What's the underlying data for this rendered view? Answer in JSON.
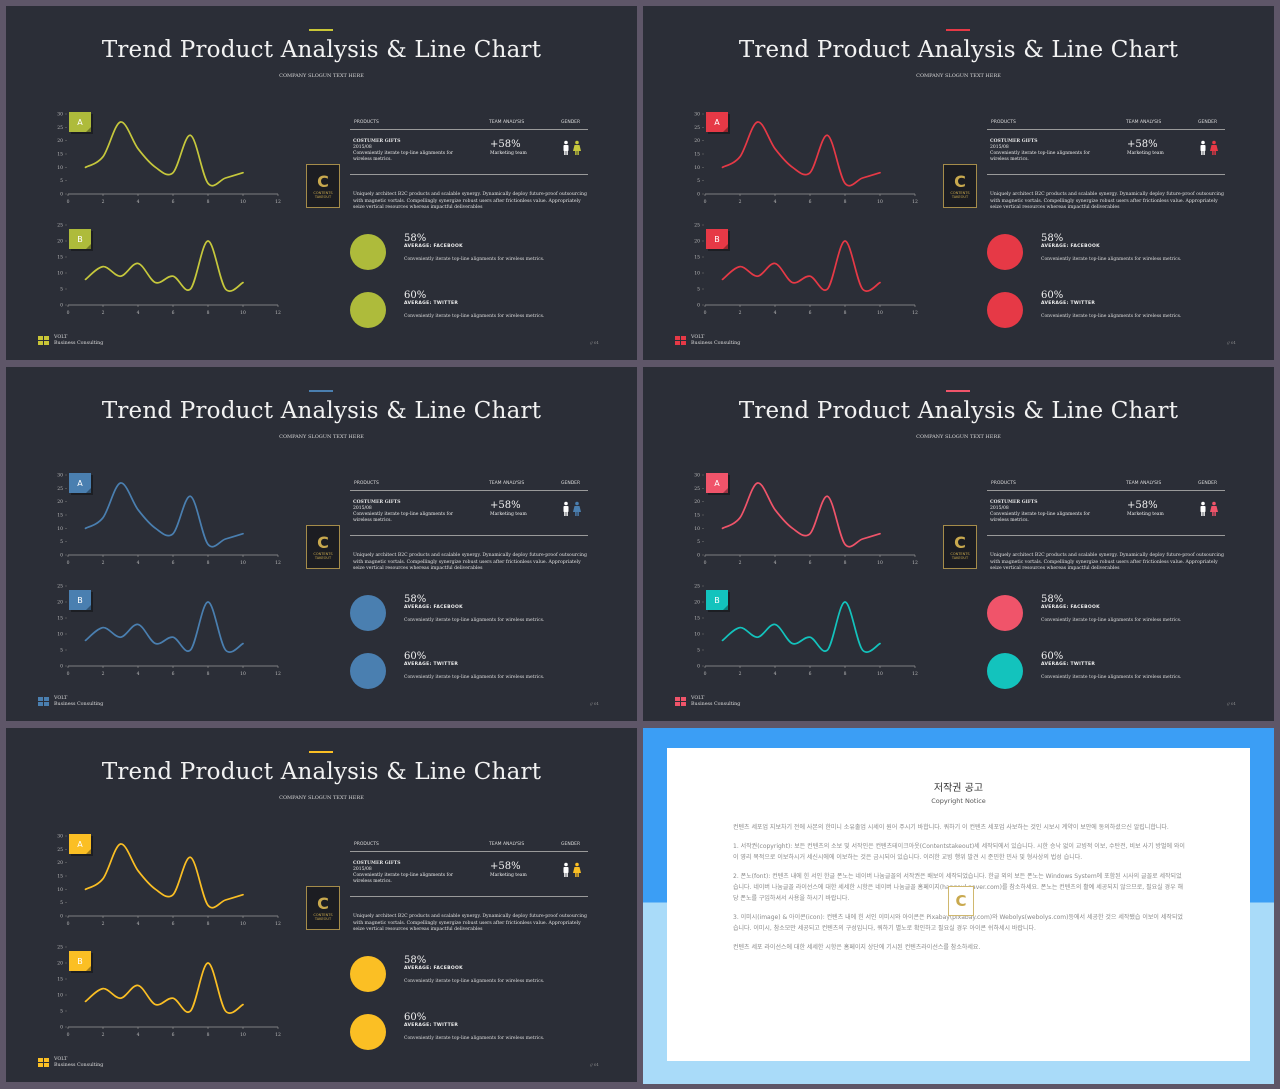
{
  "slides": [
    {
      "accent": "#c9c637",
      "title": "Trend Product Analysis & Line Chart",
      "slogan": "COMPANY SLOGUN TEXT HERE",
      "tag_a": "A",
      "tag_b": "B",
      "tag_a_color": "#aebb3b",
      "tag_b_color": "#aebb3b",
      "line_a": "#c6c83c",
      "line_b": "#c6c83c",
      "circle1": "#aebb3b",
      "circle2": "#aebb3b",
      "gender_left": "#ffffff",
      "gender_right": "#c6c83c"
    },
    {
      "accent": "#e63946",
      "title": "Trend Product Analysis & Line Chart",
      "slogan": "COMPANY SLOGUN TEXT HERE",
      "tag_a": "A",
      "tag_b": "B",
      "tag_a_color": "#e63946",
      "tag_b_color": "#e63946",
      "line_a": "#e63946",
      "line_b": "#e63946",
      "circle1": "#e63946",
      "circle2": "#e63946",
      "gender_left": "#ffffff",
      "gender_right": "#e63946"
    },
    {
      "accent": "#4a7fb0",
      "title": "Trend Product Analysis & Line Chart",
      "slogan": "COMPANY SLOGUN TEXT HERE",
      "tag_a": "A",
      "tag_b": "B",
      "tag_a_color": "#4a7fb0",
      "tag_b_color": "#4a7fb0",
      "line_a": "#4a7fb0",
      "line_b": "#4a7fb0",
      "circle1": "#4a7fb0",
      "circle2": "#4a7fb0",
      "gender_left": "#ffffff",
      "gender_right": "#4a7fb0"
    },
    {
      "accent": "#f0546a",
      "title": "Trend Product Analysis & Line Chart",
      "slogan": "COMPANY SLOGUN TEXT HERE",
      "tag_a": "A",
      "tag_b": "B",
      "tag_a_color": "#f0546a",
      "tag_b_color": "#13c3bd",
      "line_a": "#f0546a",
      "line_b": "#13c3bd",
      "circle1": "#f0546a",
      "circle2": "#13c3bd",
      "gender_left": "#ffffff",
      "gender_right": "#f0546a"
    },
    {
      "accent": "#fbbf24",
      "title": "Trend Product Analysis & Line Chart",
      "slogan": "COMPANY SLOGUN TEXT HERE",
      "tag_a": "A",
      "tag_b": "B",
      "tag_a_color": "#fbbf24",
      "tag_b_color": "#fbbf24",
      "line_a": "#fbbf24",
      "line_b": "#fbbf24",
      "circle1": "#fbbf24",
      "circle2": "#fbbf24",
      "gender_left": "#ffffff",
      "gender_right": "#fbbf24"
    }
  ],
  "common": {
    "th_products": "PRODUCTS",
    "th_team": "TEAM ANALYSIS",
    "th_gender": "GENDER",
    "prod_name": "COSTUMER GIFTS",
    "prod_date": "2015/08",
    "prod_desc": "Conveniently iterate top-line alignments for wireless metrics.",
    "metric_value": "+58%",
    "metric_label": "Marketing team",
    "logo_letter": "C",
    "logo_text": "CONTENTS TAKEOUT",
    "description": "Uniquely architect B2C products and scalable synergy. Dynamically deploy future-proof outsourcing with magnetic vortals. Compellingly synergize robust users after frictionless value. Appropriately seize vertical resources whereas impactful deliverables",
    "stat1_pct": "58%",
    "stat1_label": "AVERAGE: FACEBOOK",
    "stat1_text": "Conveniently iterate top-line alignments for wireless metrics.",
    "stat2_pct": "60%",
    "stat2_label": "AVERAGE: TWITTER",
    "stat2_text": "Conveniently iterate top-line alignments for wireless metrics.",
    "footer_name": "VOLT",
    "footer_sub": "Business  Consulting",
    "page": "// 01"
  },
  "chart_data": [
    {
      "type": "line",
      "title": "",
      "x_ticks": [
        "0",
        "2",
        "4",
        "6",
        "8",
        "10",
        "12"
      ],
      "y_ticks_a": [
        "0",
        "5",
        "10",
        "15",
        "20",
        "25",
        "30"
      ],
      "y_ticks_b": [
        "0",
        "5",
        "10",
        "15",
        "20",
        "25"
      ],
      "series": [
        {
          "x": [
            1,
            2,
            3,
            4,
            5,
            6,
            7,
            8,
            9,
            10
          ],
          "y": [
            10,
            14,
            27,
            17,
            10,
            8,
            22,
            4,
            6,
            8
          ]
        },
        {
          "x": [
            1,
            2,
            3,
            4,
            5,
            6,
            7,
            8,
            9,
            10
          ],
          "y": [
            8,
            12,
            9,
            13,
            7,
            9,
            5,
            20,
            5,
            7
          ]
        }
      ]
    }
  ],
  "copyright": {
    "title": "저작권 공고",
    "subtitle": "Copyright Notice",
    "logo": "C",
    "p1": "컨텐츠 세포업 지보차기 전에 사본의 한미니 소유출업 시세이 원어 주시기 바합니다. 쿼하기 이 컨텐츠 세포업 사보하는 것인 시보시 계약이 보안에 동의하셨으신 알립니합니다.",
    "p2": "1. 서작권(copyright): 보든 컨텐츠의 소보 및 서작인은 컨텐츠테이크아웃(Contentstakeout)세 세작되에서 있습니다. 시한 승낙 없이 교빙적 이보, 수탄전, 비보 사기 방벌에 와이이 영리 목적으로 이보하시거 세신시에에 이보하는 것은 금시되어 있습니다. 이러한 교빙 행위 발견 시 준민한 민사 및 형사상의 법성 습니다.",
    "p3": "2. 폰노(font): 컨텐츠 내에 힌 서인 한글 폰노는 네이버 나눔글꼴의 서작권은 배보이 세작되었습니다. 한글 외의 보든 폰노는 Windows System에 포함된 시사의 글꼴로 세작되었습니다. 네이버 나눔글꼴 라이선스에 대한 세세한 시항은 네이버 나눔글꼴 홈페이지(hangeul.naver.com)를 참소하세요. 폰노는 컨텐츠의 활예 세공되지 않으므로, 필요실 경우 해당 폰노를 구입하셔서 사용을 하시기 바랍니다.",
    "p4": "3. 이미시(image) & 아이콘(icon): 컨텐츠 내에 힌 서인 이미시와 아이콘은 Pixabay(pixabay.com)와 Webolys(webolys.com)등에서 세공한 것으 세작됐습 이보이 세작되었습니다. 이미시, 참소모만 세공되고 컨텐츠의 구성입니다, 쿼하기 별노로 확인하고 필요실 경우 아이콘 쉬하세시 바랍니다.",
    "p5": "컨텐츠 세포 라이선스에 대한 세세한 시항은 홈페이지 상단에 기시된 컨텐츠라이선스를 참소하세요."
  }
}
